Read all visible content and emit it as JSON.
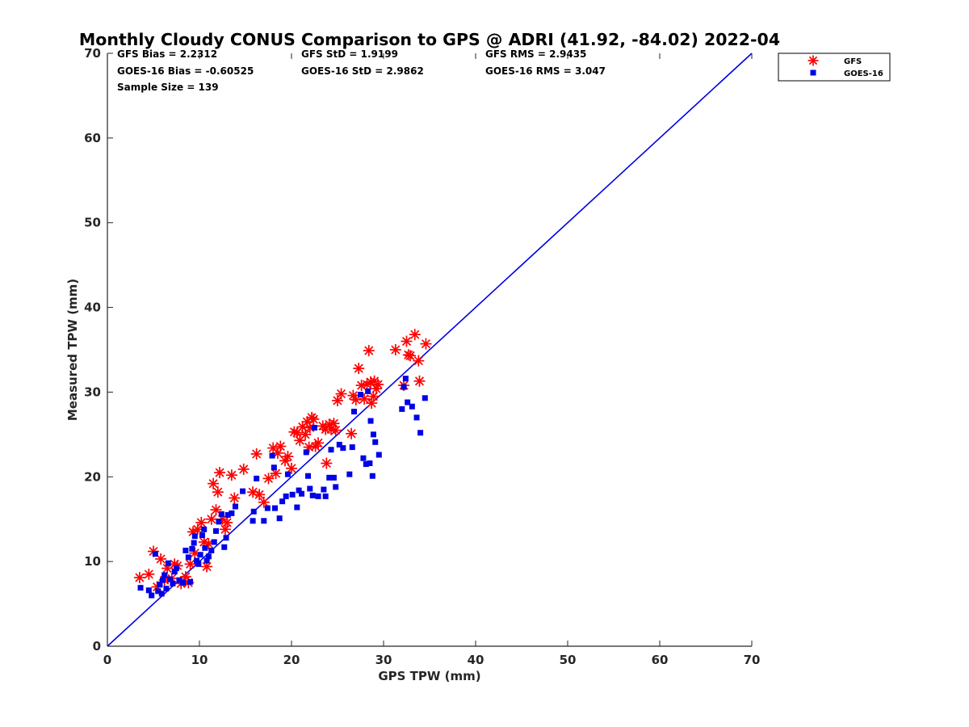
{
  "chart_data": {
    "type": "scatter",
    "title": "Monthly Cloudy CONUS Comparison to GPS @ ADRI (41.92, -84.02) 2022-04",
    "xlabel": "GPS TPW (mm)",
    "ylabel": "Measured TPW (mm)",
    "xlim": [
      0,
      70
    ],
    "ylim": [
      0,
      70
    ],
    "xticks": [
      0,
      10,
      20,
      30,
      40,
      50,
      60,
      70
    ],
    "yticks": [
      0,
      10,
      20,
      30,
      40,
      50,
      60,
      70
    ],
    "grid": false,
    "legend_position": "outside-top-right",
    "stats": [
      [
        "GFS Bias = 2.2312",
        "GFS StD = 1.9199",
        "GFS RMS = 2.9435"
      ],
      [
        "GOES-16 Bias = -0.60525",
        "GOES-16 StD = 2.9862",
        "GOES-16 RMS = 3.047"
      ],
      [
        "Sample Size = 139"
      ]
    ],
    "reference_line": {
      "x": [
        0,
        70
      ],
      "y": [
        0,
        70
      ],
      "color": "#0000e6"
    },
    "series": [
      {
        "name": "GFS",
        "marker": "asterisk",
        "color": "#ff0000",
        "points": [
          [
            3.5,
            8.1
          ],
          [
            4.5,
            8.5
          ],
          [
            5.0,
            11.2
          ],
          [
            5.4,
            7.0
          ],
          [
            5.8,
            10.3
          ],
          [
            6.2,
            7.8
          ],
          [
            6.5,
            9.2
          ],
          [
            7.0,
            8.0
          ],
          [
            7.3,
            9.7
          ],
          [
            7.6,
            9.5
          ],
          [
            8.0,
            7.4
          ],
          [
            8.5,
            8.2
          ],
          [
            8.8,
            7.5
          ],
          [
            9.0,
            9.7
          ],
          [
            9.3,
            13.5
          ],
          [
            9.5,
            11.0
          ],
          [
            9.8,
            13.8
          ],
          [
            10.2,
            14.6
          ],
          [
            10.5,
            12.3
          ],
          [
            10.8,
            9.4
          ],
          [
            11.0,
            12.1
          ],
          [
            11.3,
            15.0
          ],
          [
            11.5,
            19.2
          ],
          [
            11.8,
            16.1
          ],
          [
            12.0,
            18.2
          ],
          [
            12.2,
            20.5
          ],
          [
            12.5,
            15.0
          ],
          [
            12.8,
            13.8
          ],
          [
            13.0,
            14.6
          ],
          [
            13.5,
            20.2
          ],
          [
            13.8,
            17.5
          ],
          [
            14.8,
            20.9
          ],
          [
            15.8,
            18.2
          ],
          [
            16.2,
            22.7
          ],
          [
            16.5,
            17.9
          ],
          [
            17.0,
            17.0
          ],
          [
            17.5,
            19.8
          ],
          [
            18.0,
            23.4
          ],
          [
            18.3,
            20.4
          ],
          [
            18.5,
            22.8
          ],
          [
            18.8,
            23.6
          ],
          [
            19.3,
            21.9
          ],
          [
            19.6,
            22.4
          ],
          [
            20.0,
            21.0
          ],
          [
            20.3,
            25.3
          ],
          [
            20.6,
            25.2
          ],
          [
            20.9,
            24.3
          ],
          [
            21.2,
            25.9
          ],
          [
            21.5,
            25.0
          ],
          [
            21.7,
            26.5
          ],
          [
            21.9,
            23.5
          ],
          [
            22.0,
            25.8
          ],
          [
            22.2,
            27.0
          ],
          [
            22.4,
            26.8
          ],
          [
            22.6,
            23.6
          ],
          [
            22.9,
            24.0
          ],
          [
            23.4,
            26.0
          ],
          [
            23.7,
            25.6
          ],
          [
            23.8,
            21.6
          ],
          [
            24.1,
            26.2
          ],
          [
            24.3,
            25.6
          ],
          [
            24.6,
            26.3
          ],
          [
            24.8,
            25.5
          ],
          [
            25.0,
            29.0
          ],
          [
            25.4,
            29.8
          ],
          [
            26.5,
            25.1
          ],
          [
            26.7,
            29.6
          ],
          [
            27.0,
            29.1
          ],
          [
            27.3,
            32.8
          ],
          [
            27.6,
            30.8
          ],
          [
            27.9,
            29.2
          ],
          [
            28.2,
            30.9
          ],
          [
            28.4,
            34.9
          ],
          [
            28.6,
            31.2
          ],
          [
            28.7,
            28.7
          ],
          [
            28.9,
            29.5
          ],
          [
            29.0,
            31.3
          ],
          [
            29.2,
            30.4
          ],
          [
            29.4,
            30.9
          ],
          [
            31.3,
            35.0
          ],
          [
            32.2,
            30.8
          ],
          [
            32.5,
            36.0
          ],
          [
            32.7,
            34.4
          ],
          [
            32.9,
            34.3
          ],
          [
            33.4,
            36.8
          ],
          [
            33.8,
            33.7
          ],
          [
            33.9,
            31.3
          ],
          [
            34.6,
            35.7
          ]
        ]
      },
      {
        "name": "GOES-16",
        "marker": "square",
        "color": "#0000e6",
        "points": [
          [
            3.6,
            6.9
          ],
          [
            4.5,
            6.6
          ],
          [
            4.8,
            6.0
          ],
          [
            5.2,
            10.9
          ],
          [
            5.5,
            6.5
          ],
          [
            5.7,
            7.3
          ],
          [
            5.9,
            6.2
          ],
          [
            6.0,
            7.8
          ],
          [
            6.2,
            8.4
          ],
          [
            6.4,
            6.8
          ],
          [
            6.6,
            9.8
          ],
          [
            6.8,
            7.9
          ],
          [
            7.1,
            7.4
          ],
          [
            7.3,
            8.8
          ],
          [
            7.5,
            9.2
          ],
          [
            7.8,
            7.8
          ],
          [
            8.2,
            7.5
          ],
          [
            8.5,
            11.3
          ],
          [
            8.8,
            10.5
          ],
          [
            9.0,
            7.6
          ],
          [
            9.2,
            11.5
          ],
          [
            9.4,
            12.2
          ],
          [
            9.5,
            13.0
          ],
          [
            9.7,
            10.1
          ],
          [
            9.9,
            9.7
          ],
          [
            10.1,
            10.8
          ],
          [
            10.3,
            13.1
          ],
          [
            10.5,
            13.8
          ],
          [
            10.6,
            11.6
          ],
          [
            10.8,
            10.1
          ],
          [
            11.0,
            10.6
          ],
          [
            11.3,
            11.3
          ],
          [
            11.6,
            12.3
          ],
          [
            11.8,
            13.6
          ],
          [
            12.1,
            14.7
          ],
          [
            12.4,
            15.6
          ],
          [
            12.7,
            11.7
          ],
          [
            12.9,
            12.8
          ],
          [
            13.1,
            15.5
          ],
          [
            13.5,
            15.7
          ],
          [
            13.9,
            16.5
          ],
          [
            14.7,
            18.3
          ],
          [
            15.8,
            14.8
          ],
          [
            15.9,
            15.9
          ],
          [
            16.2,
            19.8
          ],
          [
            17.0,
            14.8
          ],
          [
            17.4,
            16.3
          ],
          [
            17.9,
            22.5
          ],
          [
            18.1,
            21.1
          ],
          [
            18.2,
            16.3
          ],
          [
            18.7,
            15.1
          ],
          [
            19.0,
            17.1
          ],
          [
            19.4,
            17.7
          ],
          [
            19.6,
            20.3
          ],
          [
            20.1,
            17.9
          ],
          [
            20.6,
            16.4
          ],
          [
            20.8,
            18.4
          ],
          [
            21.1,
            18.0
          ],
          [
            21.6,
            22.9
          ],
          [
            21.8,
            20.1
          ],
          [
            22.0,
            18.6
          ],
          [
            22.3,
            17.8
          ],
          [
            22.5,
            25.8
          ],
          [
            22.9,
            17.7
          ],
          [
            23.5,
            18.5
          ],
          [
            23.7,
            17.7
          ],
          [
            24.1,
            19.9
          ],
          [
            24.3,
            23.2
          ],
          [
            24.6,
            19.9
          ],
          [
            24.8,
            18.8
          ],
          [
            25.2,
            23.8
          ],
          [
            25.6,
            23.4
          ],
          [
            26.3,
            20.3
          ],
          [
            26.6,
            23.5
          ],
          [
            26.8,
            27.7
          ],
          [
            27.5,
            29.7
          ],
          [
            27.8,
            22.2
          ],
          [
            28.1,
            21.5
          ],
          [
            28.3,
            30.1
          ],
          [
            28.5,
            21.6
          ],
          [
            28.6,
            26.6
          ],
          [
            28.8,
            20.1
          ],
          [
            28.9,
            25.0
          ],
          [
            29.1,
            24.1
          ],
          [
            29.5,
            22.6
          ],
          [
            32.0,
            28.0
          ],
          [
            32.2,
            30.6
          ],
          [
            32.4,
            31.6
          ],
          [
            32.6,
            28.8
          ],
          [
            33.1,
            28.3
          ],
          [
            33.6,
            27.0
          ],
          [
            34.0,
            25.2
          ],
          [
            34.5,
            29.3
          ]
        ]
      }
    ]
  }
}
